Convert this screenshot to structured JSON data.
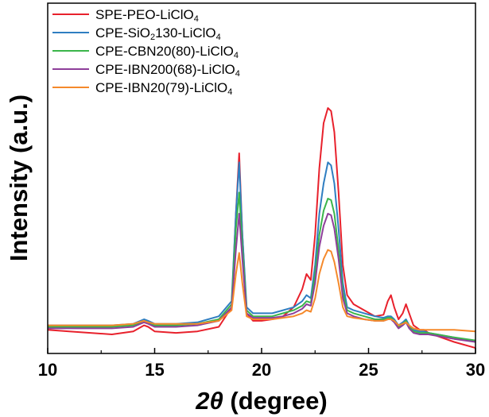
{
  "chart_data": {
    "type": "line",
    "title": "",
    "xlabel_symbol": "2θ",
    "xlabel_unit": " (degree)",
    "ylabel": "Intensity (a.u.)",
    "xlim": [
      10,
      30
    ],
    "ylim": [
      0,
      100
    ],
    "x_ticks": [
      10,
      15,
      20,
      25,
      30
    ],
    "x_tick_labels": [
      "10",
      "15",
      "20",
      "25",
      "30"
    ],
    "legend_position": "top-left",
    "grid": false,
    "series": [
      {
        "name_main": "SPE-PEO-LiClO",
        "name_sub": "4",
        "color": "#e8212c",
        "x": [
          10,
          11,
          12,
          13,
          14,
          14.5,
          14.7,
          15,
          16,
          17,
          18,
          18.6,
          18.8,
          18.95,
          19.1,
          19.3,
          19.6,
          20,
          20.5,
          21,
          21.5,
          21.9,
          22.1,
          22.3,
          22.5,
          22.7,
          22.9,
          23.1,
          23.25,
          23.4,
          23.6,
          23.8,
          24.0,
          24.3,
          24.8,
          25.3,
          25.7,
          25.9,
          26.05,
          26.2,
          26.4,
          26.6,
          26.75,
          26.9,
          27.1,
          27.4,
          27.6,
          27.8,
          28.2,
          29,
          30
        ],
        "y": [
          6.5,
          6,
          5.5,
          5,
          6,
          8,
          7.5,
          6,
          5.5,
          6,
          7.5,
          14,
          45,
          65,
          38,
          12,
          9.5,
          9.5,
          10,
          11,
          14,
          20,
          25,
          23,
          38,
          60,
          75,
          80,
          79,
          72,
          52,
          28,
          18,
          15,
          13,
          11,
          11.5,
          16,
          18,
          14,
          10,
          12,
          15,
          12,
          8,
          6.5,
          6.5,
          5.5,
          4.5,
          2.5,
          0.5
        ]
      },
      {
        "name_main": "CPE-SiO",
        "name_sub": "2",
        "name_rest": "130-LiClO",
        "name_sub2": "4",
        "color": "#2f7ec1",
        "x": [
          10,
          11,
          12,
          13,
          14,
          14.5,
          14.7,
          15,
          16,
          17,
          18,
          18.6,
          18.8,
          18.95,
          19.1,
          19.3,
          19.6,
          20,
          20.5,
          21,
          21.5,
          21.9,
          22.1,
          22.3,
          22.5,
          22.7,
          22.9,
          23.1,
          23.25,
          23.4,
          23.6,
          23.8,
          24.0,
          24.3,
          24.8,
          25.3,
          25.7,
          25.9,
          26.05,
          26.2,
          26.4,
          26.6,
          26.75,
          26.9,
          27.1,
          27.4,
          27.6,
          27.8,
          28.2,
          29,
          30
        ],
        "y": [
          8,
          8,
          8,
          8,
          8.5,
          10,
          9.5,
          8.5,
          8.5,
          9,
          11,
          16,
          45,
          62,
          38,
          14,
          12,
          12,
          12,
          13,
          14,
          16,
          18,
          17,
          28,
          45,
          55,
          62,
          61,
          55,
          40,
          22,
          14,
          13,
          12,
          11,
          10.5,
          11,
          11,
          10,
          8,
          9,
          10,
          8,
          6.5,
          6,
          6,
          5.5,
          5,
          4,
          2.5
        ]
      },
      {
        "name_main": "CPE-CBN20(80)-LiClO",
        "name_sub": "4",
        "color": "#3bb54a",
        "x": [
          10,
          11,
          12,
          13,
          14,
          14.5,
          14.7,
          15,
          16,
          17,
          18,
          18.6,
          18.8,
          18.95,
          19.1,
          19.3,
          19.6,
          20,
          20.5,
          21,
          21.5,
          21.9,
          22.1,
          22.3,
          22.5,
          22.7,
          22.9,
          23.1,
          23.25,
          23.4,
          23.6,
          23.8,
          24.0,
          24.3,
          24.8,
          25.3,
          25.7,
          25.9,
          26.05,
          26.2,
          26.4,
          26.6,
          26.75,
          26.9,
          27.1,
          27.4,
          27.6,
          27.8,
          28.2,
          29,
          30
        ],
        "y": [
          7.5,
          7.5,
          7.5,
          7.5,
          8,
          9.5,
          9,
          8,
          8,
          8.5,
          10,
          15,
          40,
          52,
          34,
          13,
          11,
          11,
          11,
          12,
          13,
          14.5,
          16,
          15.5,
          25,
          38,
          46,
          50,
          49.5,
          45,
          33,
          19,
          13,
          12,
          11,
          10,
          10,
          10.5,
          10.5,
          9.5,
          7.5,
          8.5,
          9.5,
          7.5,
          6,
          5.5,
          5.5,
          5.5,
          5,
          4,
          3
        ]
      },
      {
        "name_main": "CPE-IBN200(68)-LiClO",
        "name_sub": "4",
        "color": "#8e3f9a",
        "x": [
          10,
          11,
          12,
          13,
          14,
          14.5,
          14.7,
          15,
          16,
          17,
          18,
          18.6,
          18.8,
          18.95,
          19.1,
          19.3,
          19.6,
          20,
          20.5,
          21,
          21.5,
          21.9,
          22.1,
          22.3,
          22.5,
          22.7,
          22.9,
          23.1,
          23.25,
          23.4,
          23.6,
          23.8,
          24.0,
          24.3,
          24.8,
          25.3,
          25.7,
          25.9,
          26.05,
          26.2,
          26.4,
          26.6,
          26.75,
          26.9,
          27.1,
          27.4,
          27.6,
          27.8,
          28.2,
          29,
          30
        ],
        "y": [
          7,
          7,
          7,
          7,
          7.5,
          9,
          8.5,
          7.5,
          7.5,
          8,
          9.5,
          14,
          33,
          45,
          30,
          12,
          10.5,
          10.5,
          10.5,
          11,
          12,
          13.5,
          15,
          14.5,
          22,
          34,
          41,
          45,
          44.5,
          40,
          30,
          17,
          12,
          11,
          10,
          9.5,
          9.5,
          10,
          10,
          9,
          7,
          8,
          9,
          7,
          5.5,
          5,
          5,
          5,
          4.5,
          3.5,
          2.5
        ]
      },
      {
        "name_main": "CPE-IBN20(79)-LiClO",
        "name_sub": "4",
        "color": "#f5892b",
        "x": [
          10,
          11,
          12,
          13,
          14,
          14.5,
          14.7,
          15,
          16,
          17,
          18,
          18.6,
          18.8,
          18.95,
          19.1,
          19.3,
          19.6,
          20,
          20.5,
          21,
          21.5,
          21.9,
          22.1,
          22.3,
          22.5,
          22.7,
          22.9,
          23.1,
          23.25,
          23.4,
          23.6,
          23.8,
          24.0,
          24.3,
          24.8,
          25.3,
          25.7,
          25.9,
          26.05,
          26.2,
          26.4,
          26.6,
          26.75,
          26.9,
          27.1,
          27.4,
          27.6,
          27.8,
          28.2,
          29,
          30
        ],
        "y": [
          8,
          8,
          8,
          8,
          8.5,
          9.5,
          9,
          8.5,
          8.5,
          8.5,
          9.5,
          13,
          25,
          32,
          22,
          11,
          10,
          10,
          10,
          10.5,
          11,
          12,
          13,
          12.5,
          17,
          25,
          30,
          33,
          32.5,
          29,
          22,
          14,
          11,
          10.5,
          10,
          9.5,
          9.5,
          10,
          10,
          9.5,
          8,
          8.5,
          9,
          8,
          7,
          6.5,
          6.5,
          6.5,
          6.5,
          6.5,
          6
        ]
      }
    ]
  }
}
